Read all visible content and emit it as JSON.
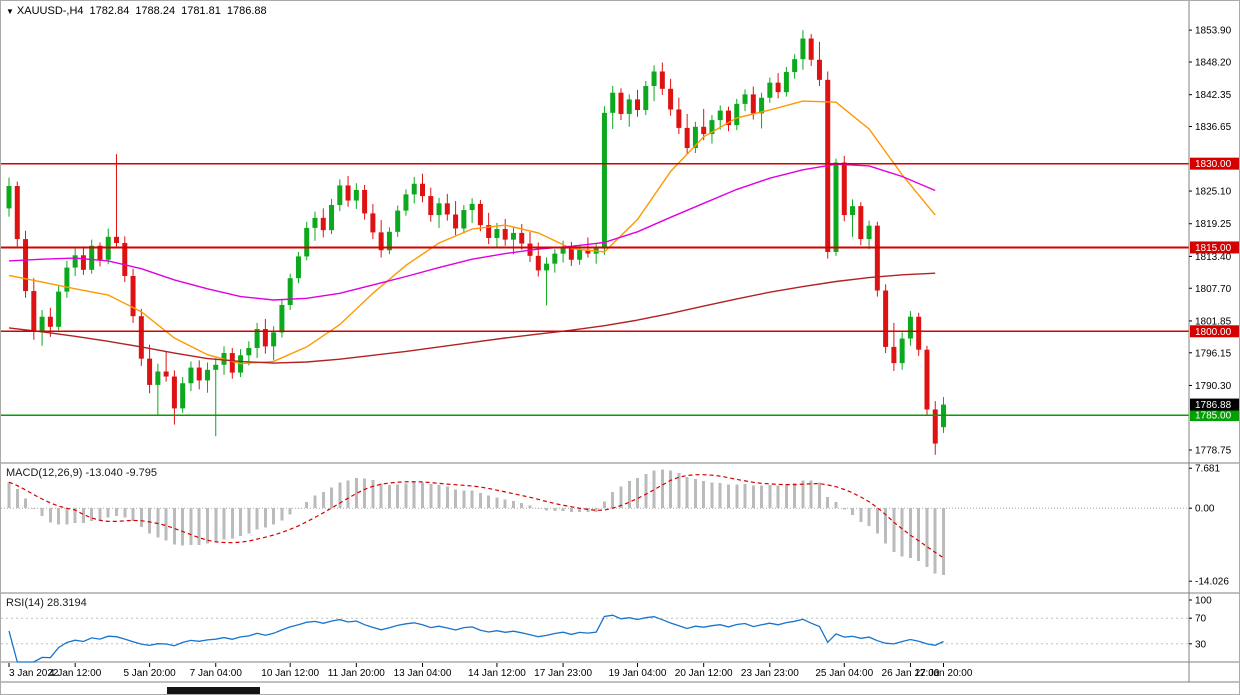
{
  "window": {
    "bg": "#FFFFFF",
    "border": "#AAAAAA"
  },
  "quote_bar": {
    "arrow": "▼",
    "symbol_period": "XAUUSD-,H4",
    "open": "1782.84",
    "high": "1788.24",
    "low": "1781.81",
    "close": "1786.88"
  },
  "colors": {
    "up": "#0CA81E",
    "down": "#DE1212",
    "wick_up": "#0CA81E",
    "wick_down": "#DE1212",
    "separator": "#808080",
    "axis_text": "#000000",
    "hist": "#BBBBBB",
    "macd_signal": "#D40000",
    "rsi_line": "#1874CD",
    "grid_dotted": "#C0C0C0"
  },
  "price_axis": {
    "labels": [
      "1853.90",
      "1848.20",
      "1842.35",
      "1836.65",
      "1825.10",
      "1819.25",
      "1813.40",
      "1807.70",
      "1801.85",
      "1796.15",
      "1790.30",
      "1778.75"
    ],
    "current_badge": {
      "text": "1786.88",
      "price": 1786.88,
      "bg": "#000000",
      "fg": "#FFFFFF"
    }
  },
  "hlines": [
    {
      "price": 1830.0,
      "label": "1830.00",
      "color": "#D40000"
    },
    {
      "price": 1815.0,
      "label": "1815.00",
      "color": "#D40000"
    },
    {
      "price": 1800.0,
      "label": "1800.00",
      "color": "#D40000"
    },
    {
      "price": 1785.0,
      "label": "1785.00",
      "color": "#00A000"
    }
  ],
  "time_axis": {
    "labels": [
      {
        "i": 0,
        "t": "3 Jan 2022"
      },
      {
        "i": 8,
        "t": "4 Jan 12:00"
      },
      {
        "i": 17,
        "t": "5 Jan 20:00"
      },
      {
        "i": 25,
        "t": "7 Jan 04:00"
      },
      {
        "i": 34,
        "t": "10 Jan 12:00"
      },
      {
        "i": 42,
        "t": "11 Jan 20:00"
      },
      {
        "i": 50,
        "t": "13 Jan 04:00"
      },
      {
        "i": 59,
        "t": "14 Jan 12:00"
      },
      {
        "i": 67,
        "t": "17 Jan 23:00"
      },
      {
        "i": 76,
        "t": "19 Jan 04:00"
      },
      {
        "i": 84,
        "t": "20 Jan 12:00"
      },
      {
        "i": 92,
        "t": "23 Jan 23:00"
      },
      {
        "i": 101,
        "t": "25 Jan 04:00"
      },
      {
        "i": 109,
        "t": "26 Jan 12:00"
      },
      {
        "i": 113,
        "t": "27 Jan 20:00"
      }
    ]
  },
  "indicators": {
    "macd": {
      "label": "MACD(12,26,9) -13.040 -9.795",
      "fast": 12,
      "slow": 26,
      "signal": 9,
      "axis": [
        {
          "v": 7.681,
          "t": "7.681"
        },
        {
          "v": 0,
          "t": "0.00"
        },
        {
          "v": -14.026,
          "t": "-14.026"
        }
      ],
      "range": {
        "max": 8.3,
        "min": -16.1
      }
    },
    "rsi": {
      "label": "RSI(14) 28.3194",
      "period": 14,
      "axis": [
        {
          "v": 100,
          "t": "100"
        },
        {
          "v": 70,
          "t": "70"
        },
        {
          "v": 30,
          "t": "30"
        }
      ],
      "levels": [
        70,
        30
      ],
      "range": {
        "max": 100,
        "min": 0
      }
    }
  },
  "chart_data": {
    "type": "candlestick",
    "symbol": "XAUUSD-",
    "timeframe": "H4",
    "price_range": {
      "max": 1858.4,
      "min": 1776.6
    },
    "candles": [
      [
        1822.0,
        1827.5,
        1820.5,
        1826.0
      ],
      [
        1826.0,
        1826.8,
        1815.2,
        1816.5
      ],
      [
        1816.5,
        1818.0,
        1806.0,
        1807.2
      ],
      [
        1807.2,
        1809.5,
        1798.5,
        1800.1
      ],
      [
        1800.1,
        1803.8,
        1797.4,
        1802.6
      ],
      [
        1802.6,
        1804.2,
        1799.0,
        1800.8
      ],
      [
        1800.8,
        1808.3,
        1800.2,
        1807.1
      ],
      [
        1807.1,
        1812.6,
        1806.0,
        1811.4
      ],
      [
        1811.4,
        1814.8,
        1809.9,
        1813.6
      ],
      [
        1813.6,
        1815.2,
        1810.1,
        1811.0
      ],
      [
        1811.0,
        1816.4,
        1810.3,
        1815.3
      ],
      [
        1815.3,
        1815.9,
        1811.6,
        1812.8
      ],
      [
        1812.8,
        1818.4,
        1812.0,
        1816.9
      ],
      [
        1816.9,
        1831.7,
        1814.9,
        1815.8
      ],
      [
        1815.8,
        1817.0,
        1808.8,
        1809.9
      ],
      [
        1809.9,
        1811.2,
        1801.5,
        1802.7
      ],
      [
        1802.7,
        1804.0,
        1793.8,
        1795.1
      ],
      [
        1795.1,
        1797.6,
        1788.9,
        1790.4
      ],
      [
        1790.4,
        1794.2,
        1785.1,
        1792.8
      ],
      [
        1792.8,
        1796.3,
        1791.0,
        1791.9
      ],
      [
        1791.9,
        1793.0,
        1783.3,
        1786.2
      ],
      [
        1786.2,
        1791.8,
        1785.4,
        1790.7
      ],
      [
        1790.7,
        1794.6,
        1789.3,
        1793.5
      ],
      [
        1793.5,
        1794.8,
        1789.6,
        1791.2
      ],
      [
        1791.2,
        1794.4,
        1789.0,
        1793.1
      ],
      [
        1793.1,
        1795.2,
        1781.2,
        1794.0
      ],
      [
        1794.0,
        1797.3,
        1792.2,
        1796.1
      ],
      [
        1796.1,
        1797.0,
        1791.5,
        1792.6
      ],
      [
        1792.6,
        1796.8,
        1791.8,
        1795.7
      ],
      [
        1795.7,
        1798.2,
        1793.9,
        1797.0
      ],
      [
        1797.0,
        1801.5,
        1795.2,
        1800.4
      ],
      [
        1800.4,
        1802.2,
        1796.0,
        1797.3
      ],
      [
        1797.3,
        1800.9,
        1794.8,
        1799.8
      ],
      [
        1799.8,
        1805.6,
        1798.9,
        1804.7
      ],
      [
        1804.7,
        1810.3,
        1803.8,
        1809.5
      ],
      [
        1809.5,
        1814.2,
        1808.6,
        1813.4
      ],
      [
        1813.4,
        1819.6,
        1812.7,
        1818.5
      ],
      [
        1818.5,
        1821.4,
        1816.2,
        1820.3
      ],
      [
        1820.3,
        1822.0,
        1816.8,
        1818.1
      ],
      [
        1818.1,
        1823.7,
        1817.4,
        1822.6
      ],
      [
        1822.6,
        1827.2,
        1821.5,
        1826.1
      ],
      [
        1826.1,
        1827.8,
        1822.3,
        1823.4
      ],
      [
        1823.4,
        1826.5,
        1821.9,
        1825.3
      ],
      [
        1825.3,
        1826.2,
        1820.0,
        1821.1
      ],
      [
        1821.1,
        1822.8,
        1816.5,
        1817.7
      ],
      [
        1817.7,
        1819.9,
        1813.2,
        1814.5
      ],
      [
        1814.5,
        1818.6,
        1813.8,
        1817.8
      ],
      [
        1817.8,
        1822.5,
        1816.9,
        1821.6
      ],
      [
        1821.6,
        1825.4,
        1820.7,
        1824.5
      ],
      [
        1824.5,
        1827.6,
        1822.9,
        1826.4
      ],
      [
        1826.4,
        1828.2,
        1823.1,
        1824.2
      ],
      [
        1824.2,
        1825.7,
        1819.6,
        1820.8
      ],
      [
        1820.8,
        1823.9,
        1818.5,
        1822.9
      ],
      [
        1822.9,
        1824.6,
        1819.8,
        1820.9
      ],
      [
        1820.9,
        1823.3,
        1817.2,
        1818.4
      ],
      [
        1818.4,
        1822.6,
        1817.5,
        1821.7
      ],
      [
        1821.7,
        1823.8,
        1819.4,
        1822.8
      ],
      [
        1822.8,
        1823.5,
        1817.9,
        1819.0
      ],
      [
        1819.0,
        1821.2,
        1815.6,
        1816.7
      ],
      [
        1816.7,
        1819.4,
        1814.9,
        1818.3
      ],
      [
        1818.3,
        1820.1,
        1815.3,
        1816.4
      ],
      [
        1816.4,
        1818.7,
        1813.8,
        1817.6
      ],
      [
        1817.6,
        1819.2,
        1814.6,
        1815.7
      ],
      [
        1815.7,
        1817.8,
        1812.4,
        1813.5
      ],
      [
        1813.5,
        1815.9,
        1809.8,
        1810.9
      ],
      [
        1810.9,
        1813.2,
        1804.6,
        1812.1
      ],
      [
        1812.1,
        1814.7,
        1810.5,
        1813.9
      ],
      [
        1813.9,
        1816.2,
        1812.3,
        1815.1
      ],
      [
        1815.1,
        1816.0,
        1811.7,
        1812.8
      ],
      [
        1812.8,
        1815.4,
        1811.9,
        1814.6
      ],
      [
        1814.6,
        1816.8,
        1813.2,
        1813.9
      ],
      [
        1813.9,
        1815.6,
        1812.1,
        1814.8
      ],
      [
        1814.8,
        1840.3,
        1813.7,
        1839.1
      ],
      [
        1839.1,
        1843.9,
        1836.2,
        1842.7
      ],
      [
        1842.7,
        1843.5,
        1837.8,
        1838.9
      ],
      [
        1838.9,
        1842.4,
        1836.6,
        1841.5
      ],
      [
        1841.5,
        1843.2,
        1838.4,
        1839.6
      ],
      [
        1839.6,
        1844.8,
        1838.7,
        1843.9
      ],
      [
        1843.9,
        1847.6,
        1841.2,
        1846.5
      ],
      [
        1846.5,
        1848.1,
        1842.3,
        1843.4
      ],
      [
        1843.4,
        1845.2,
        1838.6,
        1839.7
      ],
      [
        1839.7,
        1841.8,
        1835.3,
        1836.4
      ],
      [
        1836.4,
        1838.9,
        1831.7,
        1832.8
      ],
      [
        1832.8,
        1837.5,
        1831.9,
        1836.6
      ],
      [
        1836.6,
        1839.8,
        1834.2,
        1835.3
      ],
      [
        1835.3,
        1838.7,
        1833.6,
        1837.8
      ],
      [
        1837.8,
        1840.4,
        1836.1,
        1839.5
      ],
      [
        1839.5,
        1840.2,
        1835.8,
        1836.9
      ],
      [
        1836.9,
        1841.6,
        1836.0,
        1840.7
      ],
      [
        1840.7,
        1843.3,
        1839.4,
        1842.4
      ],
      [
        1842.4,
        1843.8,
        1837.9,
        1839.0
      ],
      [
        1839.0,
        1842.7,
        1836.3,
        1841.8
      ],
      [
        1841.8,
        1845.4,
        1840.9,
        1844.5
      ],
      [
        1844.5,
        1846.2,
        1841.7,
        1842.8
      ],
      [
        1842.8,
        1847.3,
        1842.0,
        1846.4
      ],
      [
        1846.4,
        1849.6,
        1845.2,
        1848.7
      ],
      [
        1848.7,
        1853.9,
        1846.8,
        1852.4
      ],
      [
        1852.4,
        1853.2,
        1847.5,
        1848.6
      ],
      [
        1848.6,
        1851.8,
        1843.9,
        1845.0
      ],
      [
        1845.0,
        1846.5,
        1813.0,
        1814.2
      ],
      [
        1814.2,
        1830.9,
        1813.5,
        1830.2
      ],
      [
        1830.2,
        1831.4,
        1819.7,
        1820.8
      ],
      [
        1820.8,
        1823.6,
        1816.9,
        1822.4
      ],
      [
        1822.4,
        1823.1,
        1815.4,
        1816.5
      ],
      [
        1816.5,
        1819.8,
        1814.7,
        1818.9
      ],
      [
        1818.9,
        1819.6,
        1806.2,
        1807.3
      ],
      [
        1807.3,
        1808.4,
        1796.1,
        1797.2
      ],
      [
        1797.2,
        1801.5,
        1792.9,
        1794.3
      ],
      [
        1794.3,
        1799.8,
        1793.1,
        1798.7
      ],
      [
        1798.7,
        1803.6,
        1797.4,
        1802.6
      ],
      [
        1802.6,
        1803.3,
        1795.6,
        1796.7
      ],
      [
        1796.7,
        1797.4,
        1784.9,
        1786.0
      ],
      [
        1786.0,
        1787.5,
        1777.9,
        1779.9
      ],
      [
        1782.84,
        1788.24,
        1781.81,
        1786.88
      ]
    ],
    "ma_lines": [
      {
        "name": "ma-fast-orange",
        "color": "#FF9800",
        "step": 4,
        "values": [
          1810.0,
          1808.8,
          1807.6,
          1806.5,
          1803.5,
          1798.8,
          1795.8,
          1794.2,
          1794.6,
          1797.2,
          1801.2,
          1806.8,
          1811.8,
          1815.8,
          1818.3,
          1819.0,
          1817.6,
          1814.8,
          1814.2,
          1820.0,
          1828.6,
          1834.8,
          1838.2,
          1839.6,
          1841.2,
          1841.0,
          1836.2,
          1828.0,
          1820.8
        ]
      },
      {
        "name": "ma-mid-magenta",
        "color": "#E000E0",
        "step": 4,
        "values": [
          1812.6,
          1812.9,
          1813.1,
          1812.6,
          1811.2,
          1809.2,
          1807.6,
          1806.2,
          1805.6,
          1805.9,
          1806.8,
          1808.3,
          1809.8,
          1811.4,
          1812.9,
          1813.9,
          1814.7,
          1815.2,
          1815.9,
          1817.8,
          1820.4,
          1822.9,
          1825.4,
          1827.4,
          1828.9,
          1829.9,
          1829.6,
          1827.7,
          1825.2
        ]
      },
      {
        "name": "ma-slow-darkred",
        "color": "#B22222",
        "step": 4,
        "values": [
          1800.6,
          1799.9,
          1799.1,
          1798.2,
          1797.2,
          1796.1,
          1795.1,
          1794.6,
          1794.3,
          1794.5,
          1795.0,
          1795.7,
          1796.4,
          1797.2,
          1798.0,
          1798.8,
          1799.5,
          1800.2,
          1801.0,
          1802.0,
          1803.2,
          1804.5,
          1805.8,
          1807.0,
          1808.0,
          1808.9,
          1809.6,
          1810.1,
          1810.4
        ]
      }
    ]
  }
}
